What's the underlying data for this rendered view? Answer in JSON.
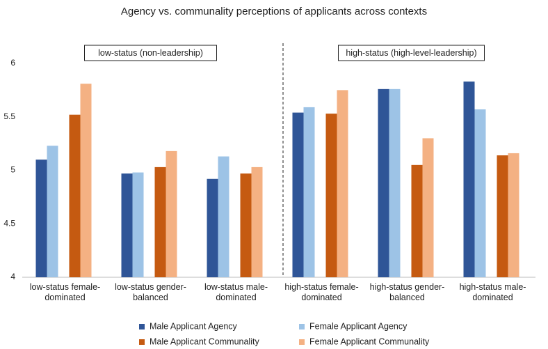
{
  "chart_data": {
    "type": "bar",
    "title": "Agency vs. communality perceptions of applicants across contexts",
    "annotations": [
      "low-status (non-leadership)",
      "high-status (high-level-leadership)"
    ],
    "categories": [
      "low-status female-dominated",
      "low-status gender-balanced",
      "low-status male-dominated",
      "high-status female-dominated",
      "high-status gender-balanced",
      "high-status male-dominated"
    ],
    "series": [
      {
        "name": "Male Applicant Agency",
        "color": "#2f5597",
        "values": [
          5.1,
          4.97,
          4.92,
          5.54,
          5.76,
          5.83
        ]
      },
      {
        "name": "Female Applicant Agency",
        "color": "#9dc3e6",
        "values": [
          5.23,
          4.98,
          5.13,
          5.59,
          5.76,
          5.57
        ]
      },
      {
        "name": "Male Applicant Communality",
        "color": "#c55a11",
        "values": [
          5.52,
          5.03,
          4.97,
          5.53,
          5.05,
          5.14
        ]
      },
      {
        "name": "Female Applicant Communality",
        "color": "#f4b183",
        "values": [
          5.81,
          5.18,
          5.03,
          5.75,
          5.3,
          5.16
        ]
      }
    ],
    "ylim": [
      4,
      6
    ],
    "yticks": [
      4,
      4.5,
      5,
      5.5,
      6
    ],
    "grid": false,
    "legend": "bottom"
  }
}
